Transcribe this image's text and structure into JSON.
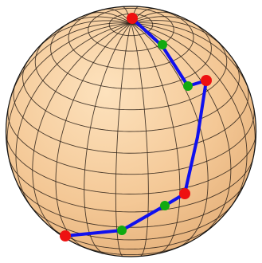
{
  "scene": {
    "sphere_color": "#f4c896",
    "grid_color": "#2b2016",
    "outline_color": "#111111",
    "path_color": "#1010ee",
    "vertex_color": "#ee1111",
    "midpoint_color": "#11aa11"
  }
}
